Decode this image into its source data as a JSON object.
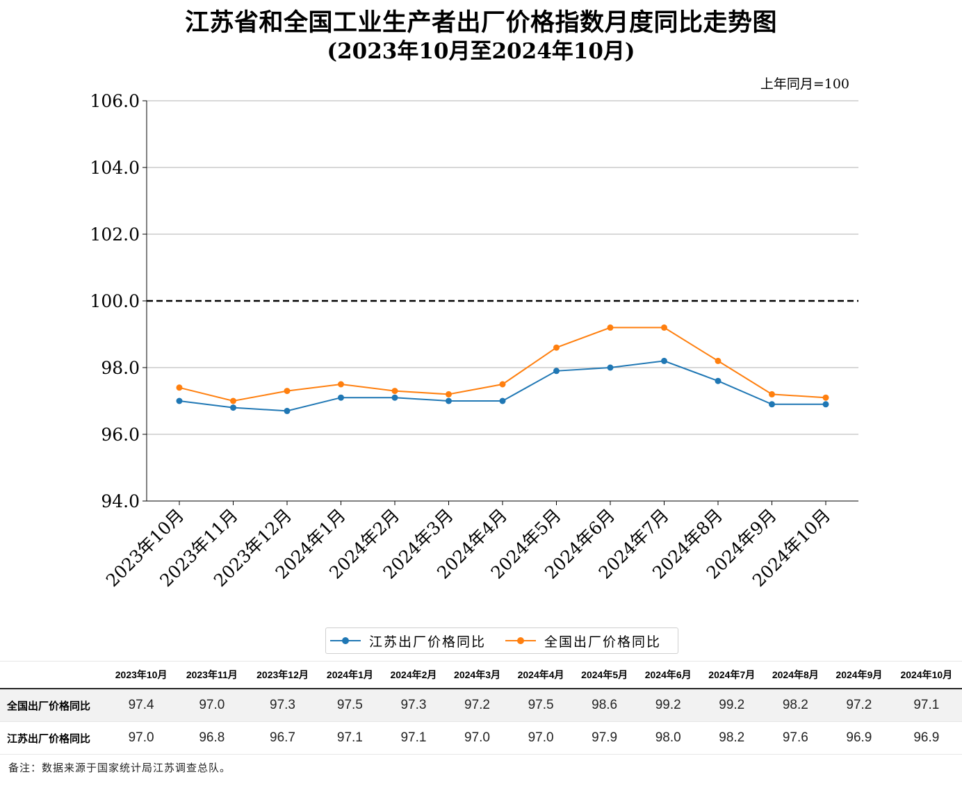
{
  "chart_data": {
    "type": "line",
    "title": "江苏省和全国工业生产者出厂价格指数月度同比走势图",
    "subtitle": "(2023年10月至2024年10月)",
    "unit_note": "上年同月=100",
    "xlabel": "",
    "ylabel": "",
    "categories": [
      "2023年10月",
      "2023年11月",
      "2023年12月",
      "2024年1月",
      "2024年2月",
      "2024年3月",
      "2024年4月",
      "2024年5月",
      "2024年6月",
      "2024年7月",
      "2024年8月",
      "2024年9月",
      "2024年10月"
    ],
    "ylim": [
      94.0,
      106.0
    ],
    "yticks": [
      "94.0",
      "96.0",
      "98.0",
      "100.0",
      "102.0",
      "104.0",
      "106.0"
    ],
    "yticks_values": [
      94,
      96,
      98,
      100,
      102,
      104,
      106
    ],
    "reference_line": 100,
    "grid": true,
    "legend_position": "bottom",
    "series": [
      {
        "name": "江苏出厂价格同比",
        "color": "#1f77b4",
        "values": [
          97.0,
          96.8,
          96.7,
          97.1,
          97.1,
          97.0,
          97.0,
          97.9,
          98.0,
          98.2,
          97.6,
          96.9,
          96.9
        ]
      },
      {
        "name": "全国出厂价格同比",
        "color": "#ff7f0e",
        "values": [
          97.4,
          97.0,
          97.3,
          97.5,
          97.3,
          97.2,
          97.5,
          98.6,
          99.2,
          99.2,
          98.2,
          97.2,
          97.1
        ]
      }
    ]
  },
  "table": {
    "headers": [
      "2023年10月",
      "2023年11月",
      "2023年12月",
      "2024年1月",
      "2024年2月",
      "2024年3月",
      "2024年4月",
      "2024年5月",
      "2024年6月",
      "2024年7月",
      "2024年8月",
      "2024年9月",
      "2024年10月"
    ],
    "rows": [
      {
        "label": "全国出厂价格同比",
        "values": [
          "97.4",
          "97.0",
          "97.3",
          "97.5",
          "97.3",
          "97.2",
          "97.5",
          "98.6",
          "99.2",
          "99.2",
          "98.2",
          "97.2",
          "97.1"
        ]
      },
      {
        "label": "江苏出厂价格同比",
        "values": [
          "97.0",
          "96.8",
          "96.7",
          "97.1",
          "97.1",
          "97.0",
          "97.0",
          "97.9",
          "98.0",
          "98.2",
          "97.6",
          "96.9",
          "96.9"
        ]
      }
    ]
  },
  "note": "备注：数据来源于国家统计局江苏调查总队。"
}
